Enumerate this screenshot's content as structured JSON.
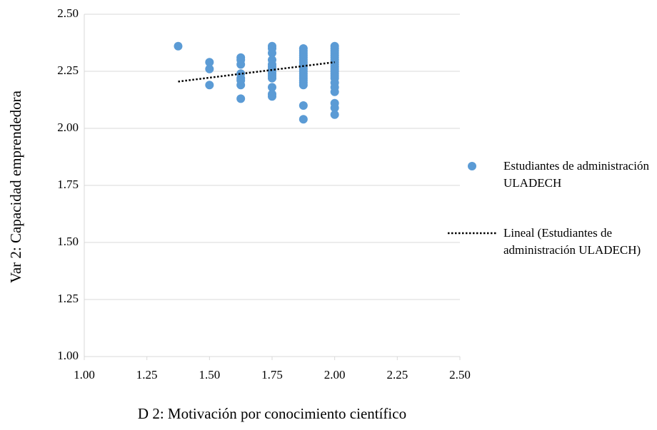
{
  "chart_data": {
    "type": "scatter",
    "xlabel": "D 2: Motivación por conocimiento científico",
    "ylabel": "Var 2: Capacidad emprendedora",
    "xlim": [
      1,
      2.5
    ],
    "ylim": [
      1,
      2.5
    ],
    "xticks": [
      {
        "value": 1,
        "label": "1.00"
      },
      {
        "value": 1.25,
        "label": "1.25"
      },
      {
        "value": 1.5,
        "label": "1.50"
      },
      {
        "value": 1.75,
        "label": "1.75"
      },
      {
        "value": 2,
        "label": "2.00"
      },
      {
        "value": 2.25,
        "label": "2.25"
      },
      {
        "value": 2.5,
        "label": "2.50"
      }
    ],
    "yticks": [
      {
        "value": 1,
        "label": "1.00"
      },
      {
        "value": 1.25,
        "label": "1.25"
      },
      {
        "value": 1.5,
        "label": "1.50"
      },
      {
        "value": 1.75,
        "label": "1.75"
      },
      {
        "value": 2,
        "label": "2.00"
      },
      {
        "value": 2.25,
        "label": "2.25"
      },
      {
        "value": 2.5,
        "label": "2.50"
      }
    ],
    "grid": true,
    "legend": "right",
    "series": [
      {
        "name": "Estudiantes de administración ULADECH",
        "color": "#5b9bd5",
        "marker": "circle",
        "x": [
          1.375,
          1.5,
          1.5,
          1.5,
          1.625,
          1.625,
          1.625,
          1.625,
          1.625,
          1.625,
          1.625,
          1.625,
          1.75,
          1.75,
          1.75,
          1.75,
          1.75,
          1.75,
          1.75,
          1.75,
          1.75,
          1.75,
          1.75,
          1.75,
          1.75,
          1.75,
          1.875,
          1.875,
          1.875,
          1.875,
          1.875,
          1.875,
          1.875,
          1.875,
          1.875,
          1.875,
          1.875,
          1.875,
          1.875,
          1.875,
          1.875,
          1.875,
          1.875,
          1.875,
          1.875,
          2,
          2,
          2,
          2,
          2,
          2,
          2,
          2,
          2,
          2,
          2,
          2,
          2,
          2,
          2,
          2,
          2,
          2,
          2,
          2,
          2
        ],
        "values": [
          2.36,
          2.29,
          2.26,
          2.19,
          2.31,
          2.3,
          2.28,
          2.24,
          2.22,
          2.21,
          2.19,
          2.13,
          2.36,
          2.35,
          2.33,
          2.3,
          2.28,
          2.27,
          2.26,
          2.25,
          2.24,
          2.23,
          2.22,
          2.18,
          2.15,
          2.14,
          2.35,
          2.34,
          2.33,
          2.32,
          2.31,
          2.3,
          2.29,
          2.28,
          2.27,
          2.26,
          2.25,
          2.24,
          2.23,
          2.22,
          2.21,
          2.2,
          2.19,
          2.1,
          2.04,
          2.36,
          2.35,
          2.34,
          2.33,
          2.32,
          2.31,
          2.3,
          2.29,
          2.28,
          2.27,
          2.26,
          2.25,
          2.24,
          2.23,
          2.22,
          2.2,
          2.18,
          2.16,
          2.11,
          2.09,
          2.06
        ]
      },
      {
        "name": "Lineal (Estudiantes de administración ULADECH)",
        "color": "#000000",
        "line_style": "dotted",
        "x": [
          1.375,
          2
        ],
        "values": [
          2.205,
          2.29
        ]
      }
    ]
  }
}
